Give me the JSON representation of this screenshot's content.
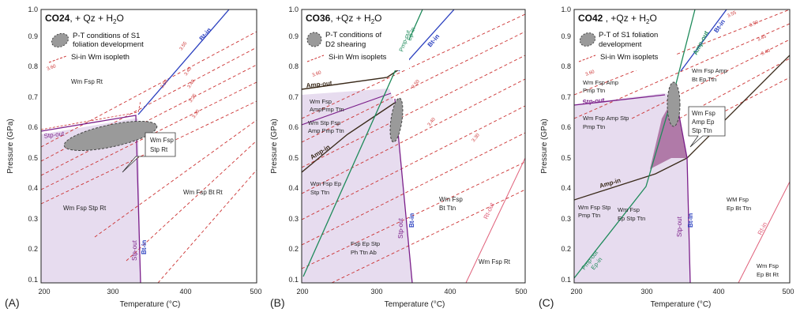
{
  "colors": {
    "field": "#e7dcef",
    "field_dark": "#b07aa8",
    "bt": "#2a3fbf",
    "stp": "#7b1f8a",
    "amp": "#3a2a1a",
    "ep": "#1e8a5a",
    "iso": "#cc3333",
    "rt": "#e0607a",
    "ellipse": "#9a9a9a"
  },
  "axes": {
    "xlabel": "Temperature (°C)",
    "ylabel": "Pressure (GPa)",
    "x_ticks": [
      "200",
      "300",
      "400",
      "500"
    ],
    "y_ticks": [
      "0.1",
      "0.2",
      "0.3",
      "0.4",
      "0.5",
      "0.6",
      "0.7",
      "0.8",
      "0.9",
      "1.0"
    ]
  },
  "panels": [
    {
      "letter": "(A)",
      "title_bold": "CO24",
      "title_rest": ", + Qz + H",
      "title_sub": "2",
      "title_tail": "O",
      "legend_ellipse": [
        "P-T conditions of S1",
        "foliation development"
      ],
      "legend_line": "Si-in Wm isopleth",
      "isopleth_labels": [
        "3.60",
        "3.55",
        "3.50",
        "3.45",
        "3.40",
        "3.35",
        "3.30"
      ],
      "fields": [
        "Wm Fsp Rt",
        "Wm Fsp Stp Rt",
        "Wm Fsp Bt  Rt"
      ],
      "callout": [
        "Wm Fsp",
        "Stp Rt"
      ],
      "lines": [
        "Stp-out",
        "Bt-in",
        "Stp-out",
        "Bt-in"
      ]
    },
    {
      "letter": "(B)",
      "title_bold": "CO36",
      "title_rest": ",  +Qz + H",
      "title_sub": "2",
      "title_tail": "O",
      "legend_ellipse": [
        "P-T conditions of",
        "D2 shearing"
      ],
      "legend_line": "Si-in Wm isoplets",
      "isopleth_labels": [
        "3.60",
        "3.50",
        "3.40",
        "3.30"
      ],
      "fields": [
        "Wm Fsp",
        "AmpPmp Ttn",
        "Wm Stp Fsp",
        "Amp Pmp Ttn",
        "Wm Fsp Ep",
        "Stp Ttn",
        "Wm Fsp",
        "Bt Ttn",
        "Fsp Ep Stp",
        "Ph Ttn Ab",
        "Wm Fsp Rt"
      ],
      "lines": [
        "Amp-out",
        "Amp-in",
        "Pmp-out",
        "Ep-in",
        "Bt-in",
        "Stp-out",
        "Bt-in",
        "Rt-out"
      ]
    },
    {
      "letter": "(C)",
      "title_bold": "CO42",
      "title_rest": " , +Qz + H",
      "title_sub": "2",
      "title_tail": "O",
      "legend_ellipse": [
        "P-T of S1 foliation",
        "development"
      ],
      "legend_line": "Si-in Wm isoplets",
      "isopleth_labels": [
        "3.60",
        "3.55",
        "3.50",
        "3.45",
        "3.40"
      ],
      "fields": [
        "Wm Fsp Amp",
        "Pmp Ttn",
        "Wm Fsp Amp",
        "Bt Ep Ttn",
        "Wm Fsp Amp Stp",
        "Pmp Ttn",
        "Wm Fsp Stp",
        "Pmp Ttn",
        "Wm Fsp",
        "Ep Stp Ttn",
        "WM Fsp",
        "Ep Bt Ttn",
        "Wm Fsp",
        "Ep Bt Rt"
      ],
      "callout": [
        "Wm Fsp",
        "Amp Ep",
        "Stp Ttn"
      ],
      "lines": [
        "Stp-out",
        "Amp-in",
        "Pmp-out",
        "Ep-in",
        "Stp-out",
        "Bt-in",
        "Amp-out",
        "Bt-in",
        "Rt-in"
      ]
    }
  ]
}
